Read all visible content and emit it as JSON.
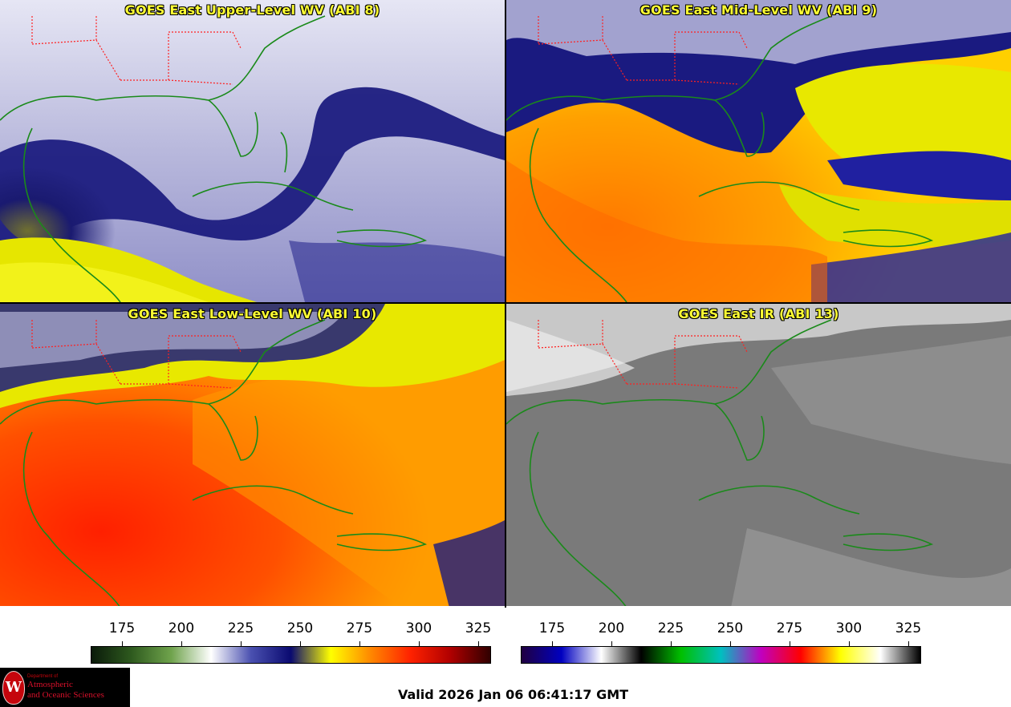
{
  "panels": [
    {
      "title": "GOES East Upper-Level WV (ABI 8)",
      "product": "upper-level-water-vapor",
      "palette": "wv"
    },
    {
      "title": "GOES East Mid-Level WV (ABI 9)",
      "product": "mid-level-water-vapor",
      "palette": "wv"
    },
    {
      "title": "GOES East Low-Level WV (ABI 10)",
      "product": "low-level-water-vapor",
      "palette": "wv"
    },
    {
      "title": "GOES East IR (ABI 13)",
      "product": "infrared-window",
      "palette": "ir"
    }
  ],
  "colorbars": {
    "wv": {
      "ticks": [
        "175",
        "200",
        "225",
        "250",
        "275",
        "300",
        "325"
      ],
      "colors": [
        "#0a1a0a",
        "#2e5a1e",
        "#6fa34c",
        "#ffffff",
        "#4a50b0",
        "#0a0a70",
        "#ffff00",
        "#ff8800",
        "#ff2200",
        "#b00000",
        "#300000"
      ]
    },
    "ir": {
      "ticks": [
        "175",
        "200",
        "225",
        "250",
        "275",
        "300",
        "325"
      ],
      "colors": [
        "#200040",
        "#0000c0",
        "#ffffff",
        "#000000",
        "#00c000",
        "#00c0c0",
        "#c000c0",
        "#ff0000",
        "#ffff00",
        "#ffffff",
        "#000000"
      ]
    }
  },
  "map_colors": {
    "coastline": "#1a8a1a",
    "state_borders": "#ff2020"
  },
  "logo": {
    "department": "Department of",
    "line1": "Atmospheric",
    "line2": "and Oceanic Sciences",
    "seal_letter": "W"
  },
  "valid_time": "Valid 2026 Jan 06 06:41:17 GMT"
}
